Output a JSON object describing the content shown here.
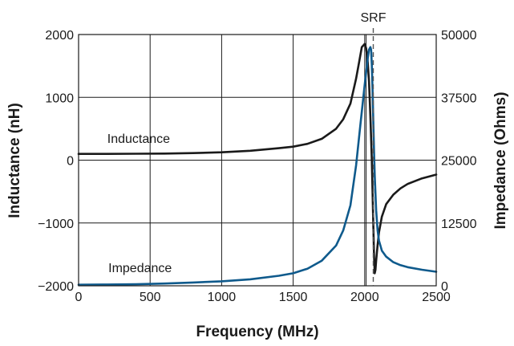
{
  "chart_data": {
    "type": "line",
    "title": "",
    "xlabel": "Frequency (MHz)",
    "ylabel_left": "Inductance (nH)",
    "ylabel_right": "Impedance (Ohms)",
    "xlim": [
      0,
      2500
    ],
    "ylim_left": [
      -2000,
      2000
    ],
    "ylim_right": [
      0,
      50000
    ],
    "x_ticks": [
      "0",
      "500",
      "1000",
      "1500",
      "2000",
      "2500"
    ],
    "y_ticks_left": [
      "2000",
      "1000",
      "0",
      "−1000",
      "−2000"
    ],
    "y_ticks_right": [
      "50000",
      "37500",
      "25000",
      "12500",
      "0"
    ],
    "grid": true,
    "srf_label": "SRF",
    "srf_mhz": 2060,
    "series": [
      {
        "name": "Inductance",
        "axis": "left",
        "color": "#1a1a1a",
        "x": [
          0,
          200,
          400,
          600,
          800,
          1000,
          1200,
          1400,
          1500,
          1600,
          1700,
          1800,
          1850,
          1900,
          1940,
          1960,
          1980,
          2000,
          2010,
          2020,
          2030,
          2040,
          2050,
          2055,
          2060,
          2065,
          2070,
          2075,
          2080,
          2090,
          2100,
          2120,
          2150,
          2200,
          2250,
          2300,
          2400,
          2500
        ],
        "y": [
          100,
          100,
          102,
          105,
          112,
          125,
          150,
          190,
          215,
          260,
          340,
          500,
          650,
          900,
          1300,
          1550,
          1800,
          1850,
          1780,
          1600,
          1250,
          700,
          0,
          -500,
          -1000,
          -1500,
          -1800,
          -1750,
          -1600,
          -1350,
          -1150,
          -900,
          -700,
          -550,
          -450,
          -380,
          -290,
          -230
        ]
      },
      {
        "name": "Impedance",
        "axis": "right",
        "color": "#0f5a8c",
        "x": [
          0,
          200,
          400,
          600,
          800,
          1000,
          1200,
          1400,
          1500,
          1600,
          1700,
          1800,
          1850,
          1900,
          1940,
          1970,
          2000,
          2020,
          2030,
          2040,
          2045,
          2050,
          2055,
          2060,
          2065,
          2070,
          2080,
          2090,
          2100,
          2120,
          2150,
          2200,
          2250,
          2300,
          2400,
          2500
        ],
        "y": [
          200,
          250,
          300,
          450,
          650,
          900,
          1300,
          2000,
          2500,
          3400,
          5000,
          8000,
          11000,
          16000,
          24000,
          32000,
          40000,
          45000,
          47000,
          47500,
          47000,
          44000,
          39000,
          33000,
          27000,
          22000,
          15000,
          11000,
          9000,
          7000,
          5800,
          4700,
          4100,
          3700,
          3200,
          2800
        ]
      }
    ]
  }
}
